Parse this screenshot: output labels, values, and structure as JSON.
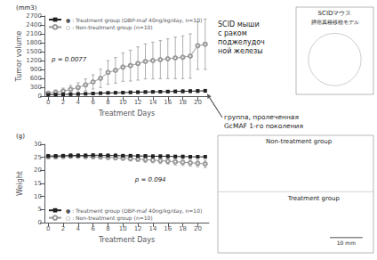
{
  "chart_data": [
    {
      "type": "line",
      "ylabel": "Tumor volume",
      "xlabel": "Treatment Days",
      "x": [
        0,
        1,
        2,
        3,
        4,
        5,
        6,
        7,
        8,
        9,
        10,
        11,
        12,
        13,
        14,
        15,
        16,
        17,
        18,
        19,
        20,
        21
      ],
      "series": [
        {
          "name": "○ : Non-treatment group (n=10)",
          "color": "#999999",
          "marker": "circle",
          "values": [
            100,
            130,
            170,
            230,
            290,
            380,
            480,
            600,
            800,
            870,
            980,
            1030,
            1100,
            1170,
            1200,
            1230,
            1260,
            1290,
            1310,
            1350,
            1700,
            1750
          ],
          "errors": [
            50,
            80,
            100,
            130,
            160,
            200,
            240,
            310,
            400,
            430,
            480,
            520,
            560,
            590,
            620,
            640,
            670,
            700,
            720,
            750,
            800,
            850
          ]
        },
        {
          "name": "● : Treatment group (DBP-maf 40ng/kg/day, n=10)",
          "color": "#222222",
          "marker": "square",
          "values": [
            50,
            55,
            60,
            65,
            70,
            80,
            90,
            100,
            110,
            115,
            120,
            130,
            135,
            140,
            145,
            150,
            155,
            160,
            165,
            170,
            175,
            180
          ],
          "errors": [
            15,
            15,
            18,
            18,
            20,
            22,
            25,
            28,
            30,
            32,
            35,
            35,
            38,
            38,
            40,
            40,
            42,
            42,
            45,
            45,
            48,
            48
          ]
        }
      ],
      "xlim": [
        -0.5,
        21.5
      ],
      "xticks": [
        0,
        2,
        4,
        6,
        8,
        10,
        12,
        14,
        16,
        18,
        20
      ],
      "ylim": [
        0,
        2700
      ],
      "yticks": [
        0,
        300,
        600,
        900,
        1200,
        1500,
        1800,
        2100,
        2400,
        2700
      ],
      "grid": false,
      "legend": "upper left",
      "annotations": [
        "(mm3)",
        "p = 0.0077",
        "SCID мыши\nс раком\nподжелудоч\nной железы",
        "группа, пролеченная\nGcMAF 1-го поколения",
        "SCIDマウス",
        "膵癌異種移植モデル"
      ]
    },
    {
      "type": "line",
      "ylabel": "Weight",
      "xlabel": "Treatment Days",
      "x": [
        0,
        1,
        2,
        3,
        4,
        5,
        6,
        7,
        8,
        9,
        10,
        11,
        12,
        13,
        14,
        15,
        16,
        17,
        18,
        19,
        20,
        21
      ],
      "series": [
        {
          "name": "○ : Non-treatment group (n=10)",
          "color": "#999999",
          "marker": "circle",
          "values": [
            25.2,
            25.2,
            25.3,
            25.4,
            25.4,
            25.3,
            25.2,
            25.1,
            25.0,
            24.8,
            24.7,
            24.5,
            24.3,
            24.1,
            23.9,
            23.7,
            23.5,
            23.3,
            23.1,
            22.9,
            22.7,
            22.5
          ],
          "errors": [
            0.6,
            0.6,
            0.6,
            0.6,
            0.6,
            0.7,
            0.7,
            0.7,
            0.8,
            0.8,
            0.8,
            0.9,
            0.9,
            1.0,
            1.0,
            1.1,
            1.1,
            1.2,
            1.2,
            1.3,
            1.3,
            1.4
          ]
        },
        {
          "name": "● : Treatment group (DBP-maf 40ng/kg/day, n=10)",
          "color": "#222222",
          "marker": "square",
          "values": [
            25.5,
            25.5,
            25.6,
            25.7,
            25.7,
            25.7,
            25.8,
            25.8,
            25.7,
            25.7,
            25.6,
            25.6,
            25.5,
            25.5,
            25.4,
            25.4,
            25.4,
            25.3,
            25.3,
            25.2,
            25.2,
            25.2
          ],
          "errors": [
            0.5,
            0.5,
            0.5,
            0.5,
            0.5,
            0.5,
            0.5,
            0.5,
            0.5,
            0.5,
            0.5,
            0.5,
            0.5,
            0.5,
            0.5,
            0.5,
            0.5,
            0.5,
            0.5,
            0.5,
            0.5,
            0.5
          ]
        }
      ],
      "xlim": [
        -0.5,
        21.5
      ],
      "xticks": [
        0,
        2,
        4,
        6,
        8,
        10,
        12,
        14,
        16,
        18,
        20
      ],
      "ylim": [
        0,
        30
      ],
      "yticks": [
        0,
        5,
        10,
        15,
        20,
        25,
        30
      ],
      "grid": false,
      "legend": "lower left",
      "annotations": [
        "(g)",
        "p = 0.094",
        "Non-treatment group",
        "Treatment group",
        "10 mm"
      ]
    }
  ]
}
